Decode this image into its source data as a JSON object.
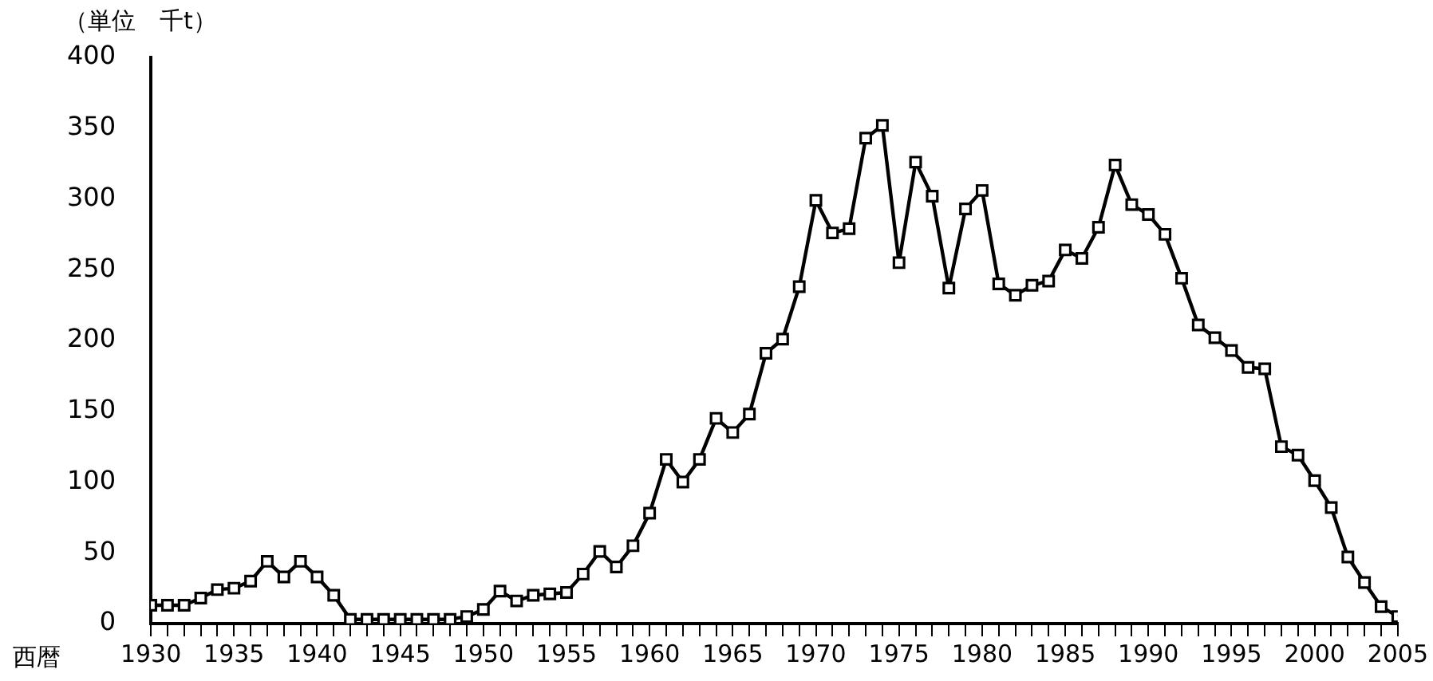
{
  "chart_data": {
    "type": "line",
    "ylabel": "（単位　千t）",
    "xlabel": "西暦",
    "x": [
      1930,
      1931,
      1932,
      1933,
      1934,
      1935,
      1936,
      1937,
      1938,
      1939,
      1940,
      1941,
      1942,
      1943,
      1944,
      1945,
      1946,
      1947,
      1948,
      1949,
      1950,
      1951,
      1952,
      1953,
      1954,
      1955,
      1956,
      1957,
      1958,
      1959,
      1960,
      1961,
      1962,
      1963,
      1964,
      1965,
      1966,
      1967,
      1968,
      1969,
      1970,
      1971,
      1972,
      1973,
      1974,
      1975,
      1976,
      1977,
      1978,
      1979,
      1980,
      1981,
      1982,
      1983,
      1984,
      1985,
      1986,
      1987,
      1988,
      1989,
      1990,
      1991,
      1992,
      1993,
      1994,
      1995,
      1996,
      1997,
      1998,
      1999,
      2000,
      2001,
      2002,
      2003,
      2004,
      2005
    ],
    "series": [
      {
        "color": "#000000",
        "values": [
          13,
          13,
          13,
          18,
          24,
          25,
          30,
          44,
          33,
          44,
          33,
          20,
          3,
          3,
          3,
          3,
          3,
          3,
          3,
          5,
          10,
          23,
          16,
          20,
          21,
          22,
          35,
          51,
          40,
          55,
          78,
          116,
          100,
          116,
          145,
          135,
          148,
          191,
          201,
          238,
          299,
          276,
          279,
          343,
          352,
          255,
          326,
          302,
          237,
          293,
          306,
          240,
          232,
          239,
          242,
          264,
          258,
          280,
          324,
          296,
          289,
          275,
          244,
          211,
          202,
          193,
          181,
          180,
          125,
          119,
          101,
          82,
          47,
          29,
          12,
          5
        ]
      }
    ],
    "xlim": [
      1930,
      2005
    ],
    "xticks": [
      1930,
      {
        "value": 1931,
        "label": null
      },
      {
        "value": 1932,
        "label": null
      },
      {
        "value": 1933,
        "label": null
      },
      {
        "value": 1934,
        "label": null
      },
      1935,
      {
        "value": 1936,
        "label": null
      },
      {
        "value": 1937,
        "label": null
      },
      {
        "value": 1938,
        "label": null
      },
      {
        "value": 1939,
        "label": null
      },
      1940,
      {
        "value": 1941,
        "label": null
      },
      {
        "value": 1942,
        "label": null
      },
      {
        "value": 1943,
        "label": null
      },
      {
        "value": 1944,
        "label": null
      },
      1945,
      {
        "value": 1946,
        "label": null
      },
      {
        "value": 1947,
        "label": null
      },
      {
        "value": 1948,
        "label": null
      },
      {
        "value": 1949,
        "label": null
      },
      1950,
      {
        "value": 1951,
        "label": null
      },
      {
        "value": 1952,
        "label": null
      },
      {
        "value": 1953,
        "label": null
      },
      {
        "value": 1954,
        "label": null
      },
      1955,
      {
        "value": 1956,
        "label": null
      },
      {
        "value": 1957,
        "label": null
      },
      {
        "value": 1958,
        "label": null
      },
      {
        "value": 1959,
        "label": null
      },
      1960,
      {
        "value": 1961,
        "label": null
      },
      {
        "value": 1962,
        "label": null
      },
      {
        "value": 1963,
        "label": null
      },
      {
        "value": 1964,
        "label": null
      },
      1965,
      {
        "value": 1966,
        "label": null
      },
      {
        "value": 1967,
        "label": null
      },
      {
        "value": 1968,
        "label": null
      },
      {
        "value": 1969,
        "label": null
      },
      1970,
      {
        "value": 1971,
        "label": null
      },
      {
        "value": 1972,
        "label": null
      },
      {
        "value": 1973,
        "label": null
      },
      {
        "value": 1974,
        "label": null
      },
      1975,
      {
        "value": 1976,
        "label": null
      },
      {
        "value": 1977,
        "label": null
      },
      {
        "value": 1978,
        "label": null
      },
      {
        "value": 1979,
        "label": null
      },
      1980,
      {
        "value": 1981,
        "label": null
      },
      {
        "value": 1982,
        "label": null
      },
      {
        "value": 1983,
        "label": null
      },
      {
        "value": 1984,
        "label": null
      },
      1985,
      {
        "value": 1986,
        "label": null
      },
      {
        "value": 1987,
        "label": null
      },
      {
        "value": 1988,
        "label": null
      },
      {
        "value": 1989,
        "label": null
      },
      1990,
      {
        "value": 1991,
        "label": null
      },
      {
        "value": 1992,
        "label": null
      },
      {
        "value": 1993,
        "label": null
      },
      {
        "value": 1994,
        "label": null
      },
      1995,
      {
        "value": 1996,
        "label": null
      },
      {
        "value": 1997,
        "label": null
      },
      {
        "value": 1998,
        "label": null
      },
      {
        "value": 1999,
        "label": null
      },
      2000,
      {
        "value": 2001,
        "label": null
      },
      {
        "value": 2002,
        "label": null
      },
      {
        "value": 2003,
        "label": null
      },
      {
        "value": 2004,
        "label": null
      },
      2005
    ],
    "ylim": [
      0,
      400
    ],
    "yticks": [
      0,
      50,
      100,
      150,
      200,
      250,
      300,
      350,
      400
    ],
    "grid": false,
    "legend": false,
    "marker": "square",
    "line_style": "solid"
  }
}
